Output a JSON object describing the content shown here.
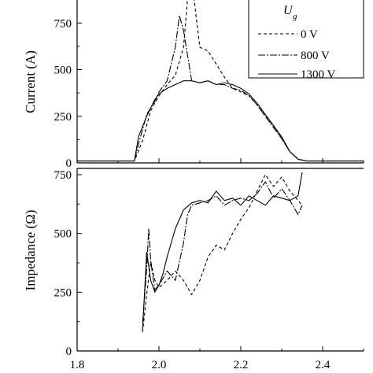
{
  "chart_data": [
    {
      "type": "line",
      "ylabel": "Current (A)",
      "xlim": [
        1.8,
        2.5
      ],
      "ylim": [
        0,
        1000
      ],
      "yticks": [
        0,
        250,
        500,
        750
      ],
      "grid": false,
      "legend": {
        "title_main": "U",
        "title_sub": "g",
        "placement": "top-right",
        "entries": [
          "0 V",
          "800 V",
          "1300 V"
        ]
      },
      "series": [
        {
          "name": "0 V",
          "style": "dashed",
          "x": [
            1.8,
            1.94,
            1.96,
            1.98,
            2.0,
            2.02,
            2.04,
            2.06,
            2.07,
            2.08,
            2.09,
            2.1,
            2.12,
            2.14,
            2.16,
            2.18,
            2.2,
            2.22,
            2.24,
            2.26,
            2.28,
            2.3,
            2.32,
            2.34,
            2.36,
            2.4,
            2.5
          ],
          "y": [
            10,
            10,
            120,
            280,
            360,
            420,
            470,
            620,
            880,
            1000,
            800,
            620,
            600,
            530,
            460,
            400,
            380,
            360,
            310,
            250,
            200,
            130,
            60,
            20,
            10,
            10,
            10
          ]
        },
        {
          "name": "800 V",
          "style": "dashdot",
          "x": [
            1.8,
            1.94,
            1.95,
            1.97,
            1.99,
            2.0,
            2.02,
            2.04,
            2.05,
            2.06,
            2.08,
            2.1,
            2.12,
            2.14,
            2.16,
            2.18,
            2.2,
            2.22,
            2.24,
            2.26,
            2.28,
            2.3,
            2.32,
            2.34,
            2.36,
            2.4,
            2.5
          ],
          "y": [
            10,
            10,
            100,
            260,
            330,
            380,
            440,
            620,
            790,
            710,
            440,
            430,
            440,
            420,
            420,
            400,
            390,
            360,
            310,
            250,
            190,
            130,
            60,
            20,
            10,
            10,
            10
          ]
        },
        {
          "name": "1300 V",
          "style": "solid",
          "x": [
            1.8,
            1.94,
            1.95,
            1.97,
            1.99,
            2.0,
            2.02,
            2.04,
            2.06,
            2.08,
            2.1,
            2.12,
            2.14,
            2.16,
            2.18,
            2.2,
            2.22,
            2.24,
            2.26,
            2.28,
            2.3,
            2.32,
            2.34,
            2.36,
            2.4,
            2.5
          ],
          "y": [
            10,
            10,
            140,
            250,
            340,
            370,
            400,
            420,
            440,
            440,
            430,
            440,
            420,
            430,
            420,
            400,
            370,
            320,
            260,
            200,
            140,
            60,
            20,
            10,
            10,
            10
          ]
        }
      ]
    },
    {
      "type": "line",
      "xlabel": "",
      "ylabel": "Impedance (Ω)",
      "xlim": [
        1.8,
        2.5
      ],
      "ylim": [
        0,
        800
      ],
      "xticks": [
        "1.8",
        "2.0",
        "2.2",
        "2.4"
      ],
      "yticks": [
        0,
        250,
        500,
        750
      ],
      "grid": false,
      "series": [
        {
          "name": "0 V",
          "style": "dashed",
          "x": [
            1.96,
            1.97,
            1.98,
            1.99,
            2.0,
            2.02,
            2.04,
            2.06,
            2.08,
            2.1,
            2.12,
            2.14,
            2.16,
            2.18,
            2.2,
            2.22,
            2.24,
            2.26,
            2.28,
            2.3,
            2.32,
            2.34,
            2.35
          ],
          "y": [
            80,
            240,
            380,
            300,
            270,
            300,
            340,
            300,
            240,
            300,
            400,
            450,
            430,
            500,
            560,
            610,
            680,
            750,
            700,
            740,
            680,
            640,
            620
          ]
        },
        {
          "name": "800 V",
          "style": "dashdot",
          "x": [
            1.96,
            1.97,
            1.975,
            1.98,
            1.99,
            2.0,
            2.02,
            2.04,
            2.06,
            2.07,
            2.08,
            2.1,
            2.12,
            2.14,
            2.16,
            2.18,
            2.2,
            2.22,
            2.24,
            2.26,
            2.28,
            2.3,
            2.32,
            2.34,
            2.35
          ],
          "y": [
            120,
            350,
            520,
            380,
            260,
            280,
            340,
            300,
            460,
            580,
            620,
            630,
            640,
            660,
            620,
            640,
            650,
            640,
            670,
            720,
            650,
            690,
            640,
            580,
            620
          ]
        },
        {
          "name": "1300 V",
          "style": "solid",
          "x": [
            1.96,
            1.97,
            1.98,
            1.99,
            2.0,
            2.01,
            2.02,
            2.04,
            2.06,
            2.08,
            2.1,
            2.12,
            2.14,
            2.16,
            2.18,
            2.2,
            2.22,
            2.24,
            2.26,
            2.28,
            2.3,
            2.32,
            2.34,
            2.35
          ],
          "y": [
            90,
            420,
            300,
            250,
            280,
            330,
            400,
            520,
            600,
            630,
            640,
            630,
            680,
            640,
            650,
            620,
            660,
            640,
            620,
            660,
            650,
            640,
            660,
            760
          ]
        }
      ]
    }
  ]
}
